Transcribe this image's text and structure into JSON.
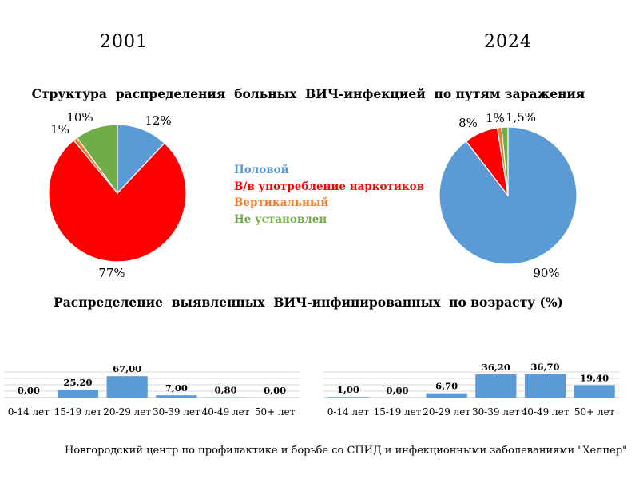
{
  "header": {
    "year_left": "2001",
    "year_right": "2024"
  },
  "pie_title": "Структура  распределения  больных  ВИЧ-инфекцией  по путям заражения",
  "bar_title": "Распределение  выявленных  ВИЧ-инфицированных  по возрасту (%)",
  "legend": [
    {
      "label": "Половой",
      "color": "#5B9BD5"
    },
    {
      "label": "В/в употребление наркотиков",
      "color": "#FF0000"
    },
    {
      "label": "Вертикальный",
      "color": "#ED7D31"
    },
    {
      "label": "Не установлен",
      "color": "#70AD47"
    }
  ],
  "footer": "Новгородский центр по профилактике и борьбе со СПИД и инфекционными заболеваниями \"Хелпер\"",
  "chart_data": [
    {
      "type": "pie",
      "year": "2001",
      "title": "Структура  распределения  больных  ВИЧ-инфекцией  по путям заражения",
      "slices": [
        {
          "name": "Половой",
          "value": 12,
          "label": "12%",
          "color": "#5B9BD5"
        },
        {
          "name": "В/в употребление наркотиков",
          "value": 77,
          "label": "77%",
          "color": "#FF0000"
        },
        {
          "name": "Вертикальный",
          "value": 1,
          "label": "1%",
          "color": "#ED7D31"
        },
        {
          "name": "Не установлен",
          "value": 10,
          "label": "10%",
          "color": "#70AD47"
        }
      ]
    },
    {
      "type": "pie",
      "year": "2024",
      "title": "Структура  распределения  больных  ВИЧ-инфекцией  по путям заражения",
      "slices": [
        {
          "name": "Половой",
          "value": 90,
          "label": "90%",
          "color": "#5B9BD5"
        },
        {
          "name": "В/в употребление наркотиков",
          "value": 8,
          "label": "8%",
          "color": "#FF0000"
        },
        {
          "name": "Вертикальный",
          "value": 1,
          "label": "1%",
          "color": "#ED7D31"
        },
        {
          "name": "Не установлен",
          "value": 1.5,
          "label": "1,5%",
          "color": "#70AD47"
        }
      ]
    },
    {
      "type": "bar",
      "year": "2001",
      "title": "Распределение  выявленных  ВИЧ-инфицированных  по возрасту (%)",
      "categories": [
        "0-14 лет",
        "15-19 лет",
        "20-29 лет",
        "30-39 лет",
        "40-49 лет",
        "50+ лет"
      ],
      "values": [
        0,
        25.2,
        67,
        7,
        0.8,
        0
      ],
      "value_labels": [
        "0,00",
        "25,20",
        "67,00",
        "7,00",
        "0,80",
        "0,00"
      ],
      "ylim": [
        0,
        80
      ],
      "grid": true,
      "color": "#5B9BD5"
    },
    {
      "type": "bar",
      "year": "2024",
      "title": "Распределение  выявленных  ВИЧ-инфицированных  по возрасту (%)",
      "categories": [
        "0-14 лет",
        "15-19 лет",
        "20-29 лет",
        "30-39 лет",
        "40-49 лет",
        "50+ лет"
      ],
      "values": [
        1,
        0,
        6.7,
        36.2,
        36.7,
        19.4
      ],
      "value_labels": [
        "1,00",
        "0,00",
        "6,70",
        "36,20",
        "36,70",
        "19,40"
      ],
      "ylim": [
        0,
        40
      ],
      "grid": true,
      "color": "#5B9BD5"
    }
  ]
}
